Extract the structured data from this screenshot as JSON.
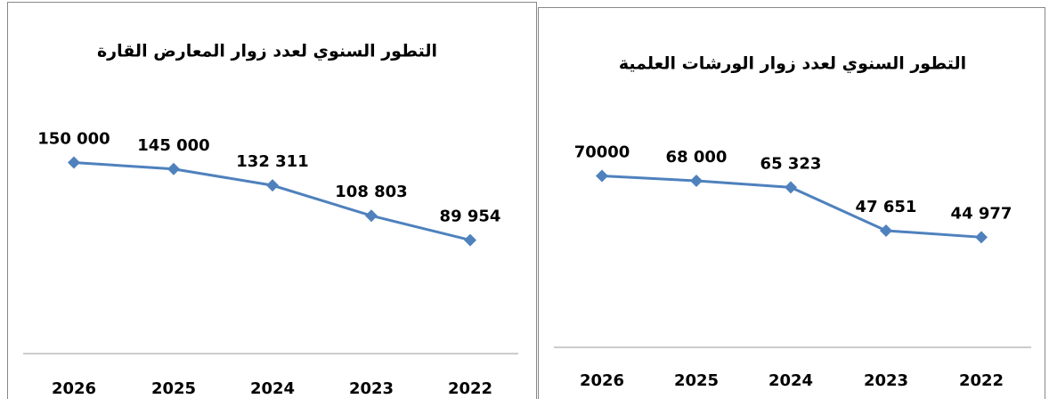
{
  "chart_data": [
    {
      "type": "line",
      "title": "التطور السنوي لعدد زوار المعارض القارة",
      "categories": [
        "2026",
        "2025",
        "2024",
        "2023",
        "2022"
      ],
      "values": [
        150000,
        145000,
        132311,
        108803,
        89954
      ],
      "value_labels": [
        "150 000",
        "145 000",
        "132 311",
        "108 803",
        "89 954"
      ],
      "color": "#4f81bd",
      "ylim": [
        0,
        160000
      ]
    },
    {
      "type": "line",
      "title": "التطور السنوي لعدد زوار الورشات العلمية",
      "categories": [
        "2026",
        "2025",
        "2024",
        "2023",
        "2022"
      ],
      "values": [
        70000,
        68000,
        65323,
        47651,
        44977
      ],
      "value_labels": [
        "70000",
        "68 000",
        "65 323",
        "47 651",
        "44 977"
      ],
      "color": "#4f81bd",
      "ylim": [
        0,
        80000
      ]
    }
  ]
}
